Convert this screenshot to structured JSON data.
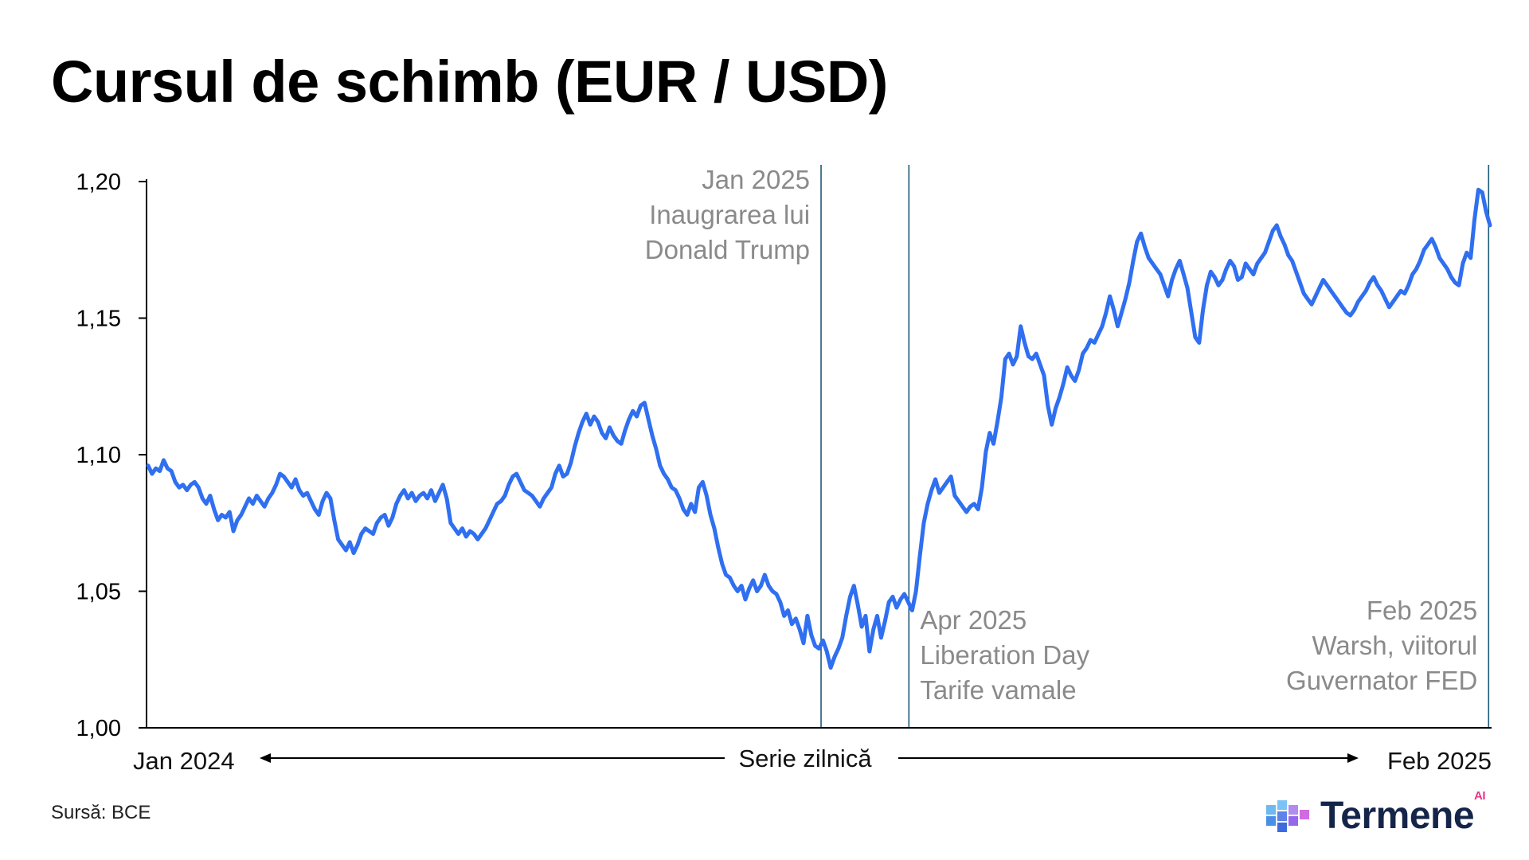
{
  "chart_data": {
    "type": "line",
    "title": "Cursul de schimb (EUR / USD)",
    "x_start_label": "Jan 2024",
    "x_end_label": "Feb 2025",
    "x_axis_center_label": "Serie zilnică",
    "ylim": [
      1.0,
      1.2
    ],
    "yticks": [
      "1,00",
      "1,05",
      "1,10",
      "1,15",
      "1,20"
    ],
    "ytick_values": [
      1.0,
      1.05,
      1.1,
      1.15,
      1.2
    ],
    "grid": false,
    "series_color": "#2f6ff0",
    "series": [
      {
        "values": [
          1.096,
          1.093,
          1.095,
          1.094,
          1.098,
          1.095,
          1.094,
          1.09,
          1.088,
          1.089,
          1.087,
          1.089,
          1.09,
          1.088,
          1.084,
          1.082,
          1.085,
          1.08,
          1.076,
          1.078,
          1.077,
          1.079,
          1.072,
          1.076,
          1.078,
          1.081,
          1.084,
          1.082,
          1.085,
          1.083,
          1.081,
          1.084,
          1.086,
          1.089,
          1.093,
          1.092,
          1.09,
          1.088,
          1.091,
          1.087,
          1.085,
          1.086,
          1.083,
          1.08,
          1.078,
          1.083,
          1.086,
          1.084,
          1.076,
          1.069,
          1.067,
          1.065,
          1.068,
          1.064,
          1.067,
          1.071,
          1.073,
          1.072,
          1.071,
          1.075,
          1.077,
          1.078,
          1.074,
          1.077,
          1.082,
          1.085,
          1.087,
          1.084,
          1.086,
          1.083,
          1.085,
          1.086,
          1.084,
          1.087,
          1.083,
          1.086,
          1.089,
          1.084,
          1.075,
          1.073,
          1.071,
          1.073,
          1.07,
          1.072,
          1.071,
          1.069,
          1.071,
          1.073,
          1.076,
          1.079,
          1.082,
          1.083,
          1.085,
          1.089,
          1.092,
          1.093,
          1.09,
          1.087,
          1.086,
          1.085,
          1.083,
          1.081,
          1.084,
          1.086,
          1.088,
          1.093,
          1.096,
          1.092,
          1.093,
          1.097,
          1.103,
          1.108,
          1.112,
          1.115,
          1.111,
          1.114,
          1.112,
          1.108,
          1.106,
          1.11,
          1.107,
          1.105,
          1.104,
          1.109,
          1.113,
          1.116,
          1.114,
          1.118,
          1.119,
          1.113,
          1.107,
          1.102,
          1.096,
          1.093,
          1.091,
          1.088,
          1.087,
          1.084,
          1.08,
          1.078,
          1.082,
          1.079,
          1.088,
          1.09,
          1.085,
          1.078,
          1.073,
          1.066,
          1.06,
          1.056,
          1.055,
          1.052,
          1.05,
          1.052,
          1.047,
          1.051,
          1.054,
          1.05,
          1.052,
          1.056,
          1.052,
          1.05,
          1.049,
          1.046,
          1.041,
          1.043,
          1.038,
          1.04,
          1.036,
          1.031,
          1.041,
          1.034,
          1.03,
          1.029,
          1.032,
          1.028,
          1.022,
          1.026,
          1.029,
          1.033,
          1.041,
          1.048,
          1.052,
          1.045,
          1.037,
          1.041,
          1.028,
          1.036,
          1.041,
          1.033,
          1.039,
          1.046,
          1.048,
          1.044,
          1.047,
          1.049,
          1.046,
          1.043,
          1.05,
          1.063,
          1.075,
          1.082,
          1.087,
          1.091,
          1.086,
          1.088,
          1.09,
          1.092,
          1.085,
          1.083,
          1.081,
          1.079,
          1.081,
          1.082,
          1.08,
          1.088,
          1.101,
          1.108,
          1.104,
          1.112,
          1.121,
          1.135,
          1.137,
          1.133,
          1.136,
          1.147,
          1.141,
          1.136,
          1.135,
          1.137,
          1.133,
          1.129,
          1.118,
          1.111,
          1.117,
          1.121,
          1.126,
          1.132,
          1.129,
          1.127,
          1.131,
          1.137,
          1.139,
          1.142,
          1.141,
          1.144,
          1.147,
          1.152,
          1.158,
          1.153,
          1.147,
          1.152,
          1.157,
          1.163,
          1.171,
          1.178,
          1.181,
          1.176,
          1.172,
          1.17,
          1.168,
          1.166,
          1.162,
          1.158,
          1.164,
          1.168,
          1.171,
          1.166,
          1.161,
          1.152,
          1.143,
          1.141,
          1.153,
          1.162,
          1.167,
          1.165,
          1.162,
          1.164,
          1.168,
          1.171,
          1.169,
          1.164,
          1.165,
          1.17,
          1.168,
          1.166,
          1.17,
          1.172,
          1.174,
          1.178,
          1.182,
          1.184,
          1.18,
          1.177,
          1.173,
          1.171,
          1.167,
          1.163,
          1.159,
          1.157,
          1.155,
          1.158,
          1.161,
          1.164,
          1.162,
          1.16,
          1.158,
          1.156,
          1.154,
          1.152,
          1.151,
          1.153,
          1.156,
          1.158,
          1.16,
          1.163,
          1.165,
          1.162,
          1.16,
          1.157,
          1.154,
          1.156,
          1.158,
          1.16,
          1.159,
          1.162,
          1.166,
          1.168,
          1.171,
          1.175,
          1.177,
          1.179,
          1.176,
          1.172,
          1.17,
          1.168,
          1.165,
          1.163,
          1.162,
          1.17,
          1.174,
          1.172,
          1.186,
          1.197,
          1.196,
          1.189,
          1.184
        ]
      }
    ],
    "markers": [
      {
        "position": 0.5015,
        "lines": [
          "Jan 2025",
          "Inaugrarea lui",
          "Donald Trump"
        ],
        "align": "end",
        "placement": "top"
      },
      {
        "position": 0.5668,
        "lines": [
          "Apr 2025",
          "Liberation Day",
          "Tarife vamale"
        ],
        "align": "start",
        "placement": "bottom"
      },
      {
        "position": 0.9978,
        "lines": [
          "Feb 2025",
          "Warsh, viitorul",
          "Guvernator FED"
        ],
        "align": "end",
        "placement": "bottom"
      }
    ],
    "annotation_color": "#8a8a8a",
    "marker_line_color": "#1d5b7a"
  },
  "footer": {
    "source": "Sursă: BCE",
    "logo_text": "Termene",
    "logo_badge": "AI"
  }
}
